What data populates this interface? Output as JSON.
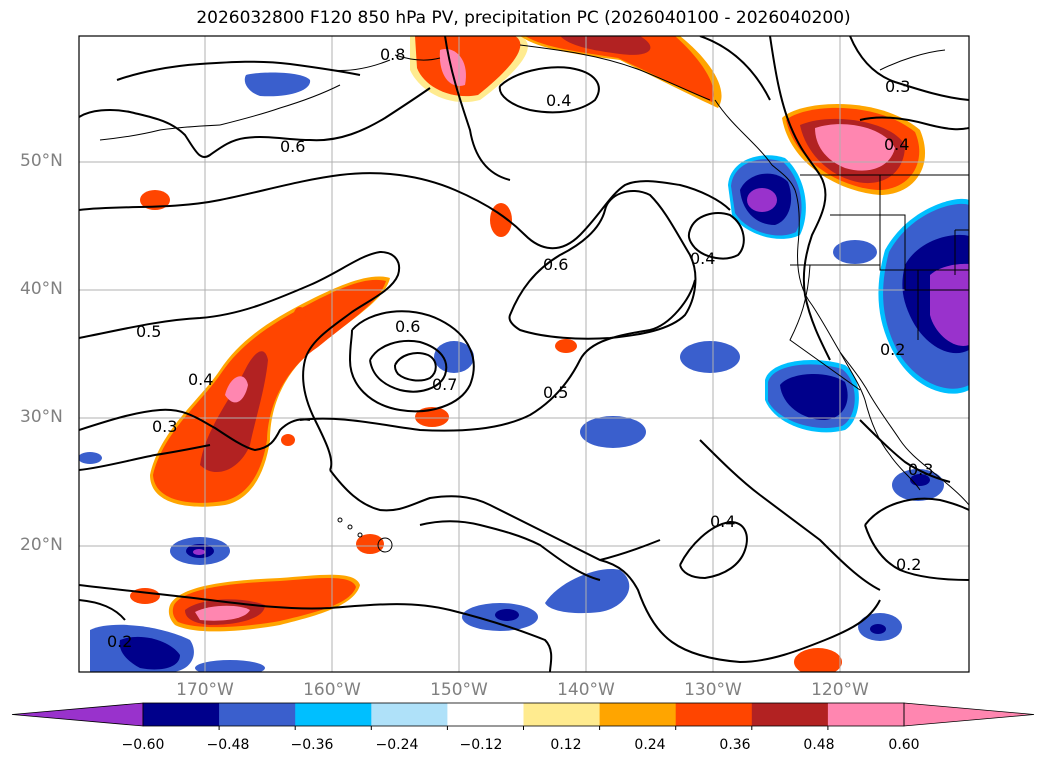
{
  "title": "2026032800 F120 850 hPa PV, precipitation PC (2026040100 - 2026040200)",
  "lat_labels": [
    "50°N",
    "40°N",
    "30°N",
    "20°N"
  ],
  "lon_labels": [
    "170°W",
    "160°W",
    "150°W",
    "140°W",
    "130°W",
    "120°W"
  ],
  "contour_labels": [
    "0.8",
    "0.4",
    "0.3",
    "0.6",
    "0.4",
    "0.4",
    "0.6",
    "0.5",
    "0.6",
    "0.4",
    "0.7",
    "0.5",
    "0.3",
    "0.3",
    "0.4",
    "0.2",
    "0.2",
    "0.2"
  ],
  "colorbar": {
    "ticks": [
      "−0.60",
      "−0.48",
      "−0.36",
      "−0.24",
      "−0.12",
      "0.12",
      "0.24",
      "0.36",
      "0.48",
      "0.60"
    ],
    "colors": [
      "#9932cc",
      "#00008b",
      "#3a5fcd",
      "#00bfff",
      "#afe1f9",
      "#ffffff",
      "#ffeb8f",
      "#ffa500",
      "#ff4500",
      "#b22222",
      "#ff86b0",
      "#ff86b0"
    ]
  }
}
